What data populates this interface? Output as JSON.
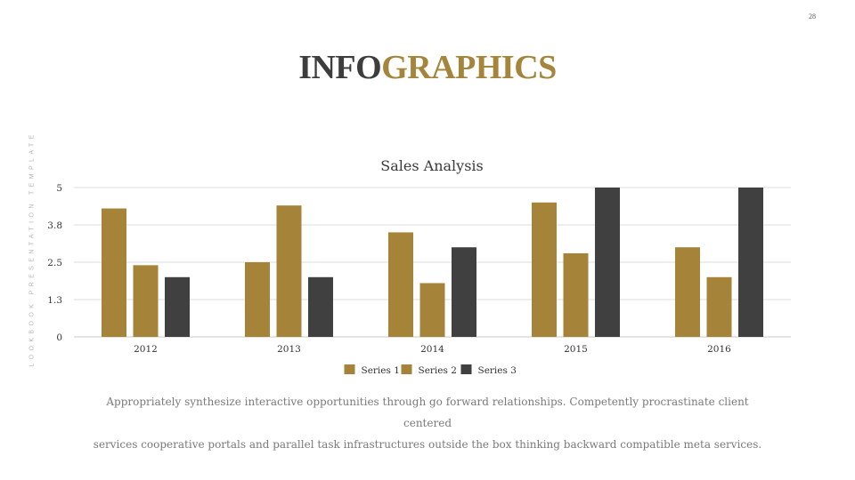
{
  "page_number": "28",
  "side_label": "LOOKBOOK PRESENTATION TEMPLATE",
  "title": {
    "part1": "INFO",
    "part2": "GRAPHICS"
  },
  "colors": {
    "accent_gold": "#a5853b",
    "dark": "#3d3d3d",
    "series": [
      "#a5843a",
      "#a5843a",
      "#404040"
    ]
  },
  "chart_data": {
    "type": "bar",
    "title": "Sales Analysis",
    "categories": [
      "2012",
      "2013",
      "2014",
      "2015",
      "2016"
    ],
    "series": [
      {
        "name": "Series 1",
        "values": [
          4.3,
          2.5,
          3.5,
          4.5,
          3.0
        ]
      },
      {
        "name": "Series 2",
        "values": [
          2.4,
          4.4,
          1.8,
          2.8,
          2.0
        ]
      },
      {
        "name": "Series 3",
        "values": [
          2.0,
          2.0,
          3.0,
          5.0,
          5.0
        ]
      }
    ],
    "yticks": [
      "0",
      "1.3",
      "2.5",
      "3.8",
      "5"
    ],
    "ylim": [
      0,
      5
    ],
    "grid": true,
    "legend_position": "bottom"
  },
  "body_text": {
    "line1": "Appropriately synthesize interactive opportunities through go forward relationships. Competently procrastinate client centered",
    "line2": "services cooperative portals and parallel task infrastructures outside the box thinking backward compatible meta services."
  }
}
